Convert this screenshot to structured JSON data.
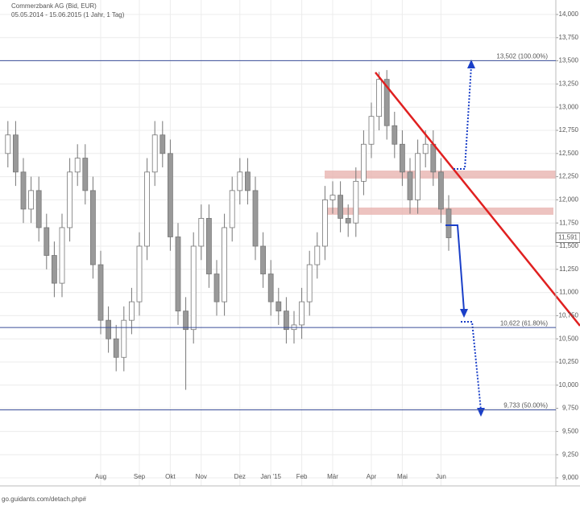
{
  "chart_data": {
    "type": "candlestick",
    "title": "Commerzbank AG (Bid, EUR)",
    "subtitle": "05.05.2014 - 15.06.2015 (1 Jahr, 1 Tag)",
    "footer": "go.guidants.com/detach.php#",
    "categories": [
      null,
      null,
      null,
      null,
      null,
      null,
      null,
      null,
      null,
      null,
      null,
      null,
      "Aug",
      null,
      null,
      null,
      null,
      "Sep",
      null,
      null,
      null,
      "Okt",
      null,
      null,
      null,
      "Nov",
      null,
      null,
      null,
      null,
      "Dez",
      null,
      null,
      null,
      "Jan '15",
      null,
      null,
      null,
      "Feb",
      null,
      null,
      null,
      "Mär",
      null,
      null,
      null,
      null,
      "Apr",
      null,
      null,
      null,
      "Mai",
      null,
      null,
      null,
      null,
      "Jun",
      null
    ],
    "open": [
      12500,
      12700,
      12300,
      11900,
      12100,
      11700,
      11400,
      11100,
      11700,
      12300,
      12450,
      12100,
      11300,
      10700,
      10500,
      10300,
      10700,
      10900,
      11500,
      12300,
      12700,
      12500,
      11600,
      10800,
      10600,
      11500,
      11800,
      11200,
      10900,
      11700,
      12100,
      12300,
      12100,
      11500,
      11200,
      10900,
      10800,
      10600,
      10650,
      10900,
      11300,
      11500,
      12000,
      12050,
      11800,
      11750,
      12200,
      12600,
      12900,
      13300,
      12800,
      12600,
      12300,
      12000,
      12500,
      12600,
      12300,
      11900
    ],
    "high": [
      12850,
      12850,
      12450,
      12250,
      12250,
      11850,
      11550,
      11850,
      12450,
      12600,
      12600,
      12250,
      11450,
      10850,
      10650,
      10850,
      11050,
      11650,
      12450,
      12850,
      12850,
      12650,
      11750,
      10950,
      11650,
      11950,
      11950,
      11350,
      11850,
      12250,
      12450,
      12450,
      12250,
      11650,
      11350,
      11050,
      10950,
      10800,
      11050,
      11450,
      11650,
      12150,
      12200,
      12200,
      11950,
      12350,
      12750,
      13050,
      13380,
      13400,
      12950,
      12750,
      12450,
      12650,
      12750,
      12750,
      12450,
      12050
    ],
    "low": [
      12350,
      12150,
      11750,
      11750,
      11550,
      11250,
      10950,
      10950,
      11550,
      12150,
      11950,
      11150,
      10550,
      10350,
      10150,
      10150,
      10550,
      10750,
      11350,
      12150,
      12350,
      11450,
      10650,
      9950,
      10450,
      11350,
      11050,
      10750,
      10750,
      11550,
      11950,
      11950,
      11350,
      11050,
      10750,
      10650,
      10450,
      10450,
      10500,
      10750,
      11150,
      11350,
      11850,
      11650,
      11600,
      11600,
      12050,
      12450,
      12750,
      12650,
      12450,
      12150,
      11850,
      11850,
      12350,
      12150,
      11750,
      11450
    ],
    "close": [
      12700,
      12300,
      11900,
      12100,
      11700,
      11400,
      11100,
      11700,
      12300,
      12450,
      12100,
      11300,
      10700,
      10500,
      10300,
      10700,
      10900,
      11500,
      12300,
      12700,
      12500,
      11600,
      10800,
      10600,
      11500,
      11800,
      11200,
      10900,
      11700,
      12100,
      12300,
      12100,
      11500,
      11200,
      10900,
      10800,
      10600,
      10650,
      10900,
      11300,
      11500,
      12000,
      12050,
      11800,
      11750,
      12200,
      12600,
      12900,
      13300,
      12800,
      12600,
      12300,
      12000,
      12500,
      12600,
      12300,
      11900,
      11591
    ],
    "ylim": [
      9000,
      14000
    ],
    "yticks": [
      {
        "value": 9000,
        "label": "9,000"
      },
      {
        "value": 9250,
        "label": "9,250"
      },
      {
        "value": 9500,
        "label": "9,500"
      },
      {
        "value": 9750,
        "label": "9,750"
      },
      {
        "value": 10000,
        "label": "10,000"
      },
      {
        "value": 10250,
        "label": "10,250"
      },
      {
        "value": 10500,
        "label": "10,500"
      },
      {
        "value": 10750,
        "label": "10,750"
      },
      {
        "value": 11000,
        "label": "11,000"
      },
      {
        "value": 11250,
        "label": "11,250"
      },
      {
        "value": 11500,
        "label": "11,500"
      },
      {
        "value": 11750,
        "label": "11,750"
      },
      {
        "value": 12000,
        "label": "12,000"
      },
      {
        "value": 12250,
        "label": "12,250"
      },
      {
        "value": 12500,
        "label": "12,500"
      },
      {
        "value": 12750,
        "label": "12,750"
      },
      {
        "value": 13000,
        "label": "13,000"
      },
      {
        "value": 13250,
        "label": "13,250"
      },
      {
        "value": 13500,
        "label": "13,500"
      },
      {
        "value": 13750,
        "label": "13,750"
      },
      {
        "value": 14000,
        "label": "14,000"
      }
    ],
    "levels": [
      {
        "value": 13502,
        "label": "13,502 (100.00%)"
      },
      {
        "value": 10622,
        "label": "10,622 (61.80%)"
      },
      {
        "value": 9733,
        "label": "9,733 (50.00%)"
      }
    ],
    "last_price": {
      "value": 11591,
      "label": "11,591"
    },
    "grid": true
  }
}
